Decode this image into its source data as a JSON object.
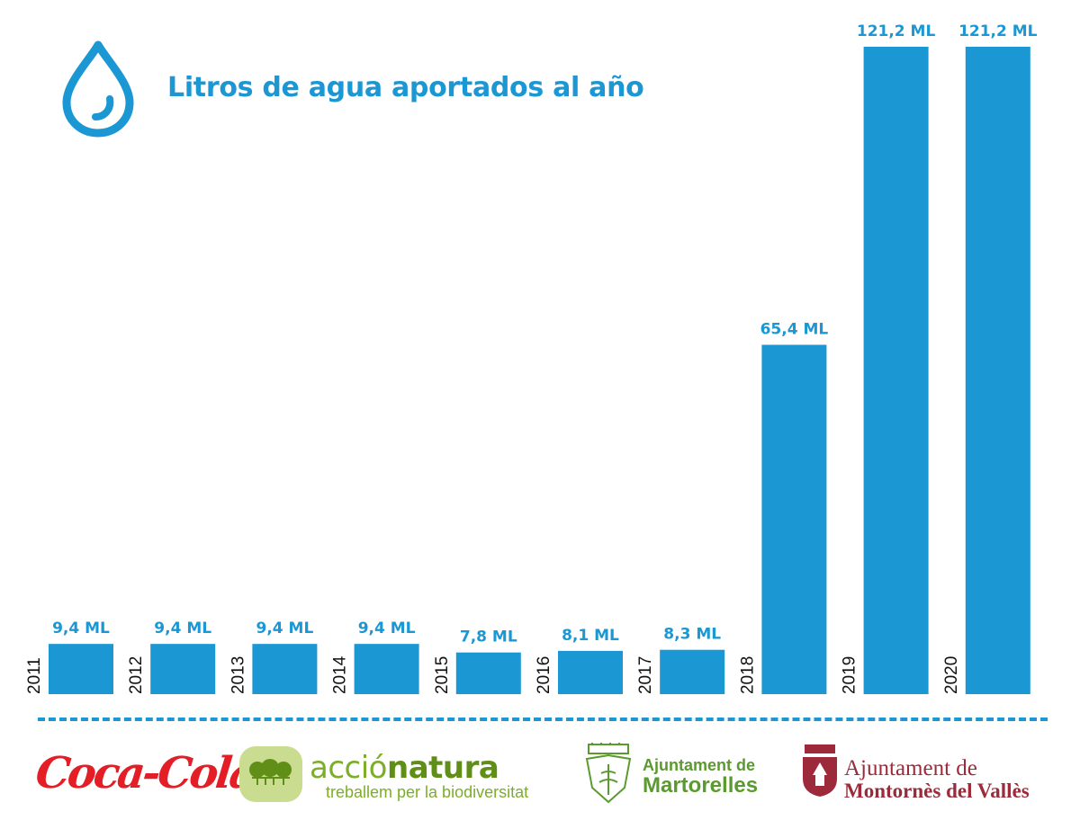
{
  "header": {
    "title": "Litros de agua aportados al año",
    "icon": "water-drop-icon"
  },
  "colors": {
    "accent": "#1b97d3",
    "coca_cola": "#e41e26",
    "accio_natura": "#7cae2a",
    "martorelles": "#5a9a2e",
    "montornes": "#9c2a3a"
  },
  "chart_data": {
    "type": "bar",
    "title": "Litros de agua aportados al año",
    "categories": [
      "2011",
      "2012",
      "2013",
      "2014",
      "2015",
      "2016",
      "2017",
      "2018",
      "2019",
      "2020"
    ],
    "values": [
      9.4,
      9.4,
      9.4,
      9.4,
      7.8,
      8.1,
      8.3,
      65.4,
      121.2,
      121.2
    ],
    "data_labels": [
      "9,4 ML",
      "9,4 ML",
      "9,4 ML",
      "9,4 ML",
      "7,8 ML",
      "8,1 ML",
      "8,3 ML",
      "65,4 ML",
      "121,2 ML",
      "121,2 ML"
    ],
    "unit": "ML",
    "xlabel": "",
    "ylabel": "",
    "ylim": [
      0,
      121.2
    ],
    "grid": false,
    "legend": false
  },
  "footer": {
    "logos": {
      "coca_cola": "Coca-Cola",
      "accio_name_light": "acció",
      "accio_name_bold": "natura",
      "accio_tagline": "treballem per la biodiversitat",
      "martorelles_line1": "Ajuntament de",
      "martorelles_line2": "Martorelles",
      "montornes_line1": "Ajuntament de",
      "montornes_line2": "Montornès del Vallès"
    }
  }
}
